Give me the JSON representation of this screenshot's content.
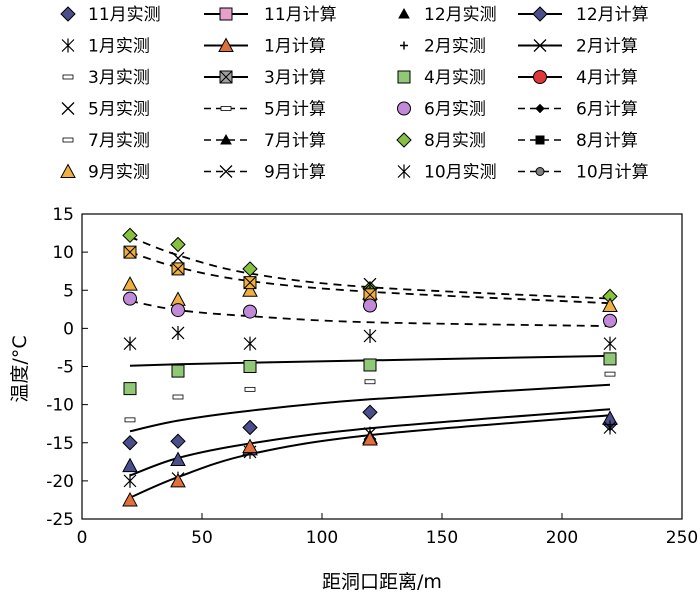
{
  "chart_data": {
    "type": "line",
    "title": "",
    "xlabel": "距洞口距离/m",
    "ylabel": "温度/°C",
    "xlim": [
      0,
      250
    ],
    "ylim": [
      -25,
      15
    ],
    "xticks": [
      0,
      50,
      100,
      150,
      200,
      250
    ],
    "yticks": [
      -25,
      -20,
      -15,
      -10,
      -5,
      0,
      5,
      10,
      15
    ],
    "grid": false,
    "legend_position": "top",
    "colors": {
      "pink": "#e8a0c8",
      "navy_purple": "#4b4e8a",
      "orange_red": "#e0703a",
      "green": "#90c878",
      "red": "#e03838",
      "lavender": "#c08ad8",
      "bright_green": "#88c040",
      "gold": "#f0b040"
    },
    "legend": [
      {
        "label": "11月实测",
        "marker": "diamond",
        "fill": "#4b4e8a",
        "line": "none"
      },
      {
        "label": "11月计算",
        "marker": "square",
        "fill": "#e8a0c8",
        "line": "solid"
      },
      {
        "label": "12月实测",
        "marker": "triangle-small",
        "fill": "#000000",
        "line": "none"
      },
      {
        "label": "12月计算",
        "marker": "diamond",
        "fill": "#4b4e8a",
        "line": "solid"
      },
      {
        "label": "1月实测",
        "marker": "asterisk",
        "fill": "#000000",
        "line": "none"
      },
      {
        "label": "1月计算",
        "marker": "triangle",
        "fill": "#e0703a",
        "line": "solid"
      },
      {
        "label": "2月实测",
        "marker": "plus",
        "fill": "#000000",
        "line": "none"
      },
      {
        "label": "2月计算",
        "marker": "x",
        "fill": "#000000",
        "line": "solid"
      },
      {
        "label": "3月实测",
        "marker": "dash",
        "fill": "#ffffff",
        "line": "none"
      },
      {
        "label": "3月计算",
        "marker": "square-x",
        "fill": "#a0a0a0",
        "line": "solid"
      },
      {
        "label": "4月实测",
        "marker": "square",
        "fill": "#90c878",
        "line": "none"
      },
      {
        "label": "4月计算",
        "marker": "circle",
        "fill": "#e03838",
        "line": "solid"
      },
      {
        "label": "5月实测",
        "marker": "x",
        "fill": "#000000",
        "line": "none"
      },
      {
        "label": "5月计算",
        "marker": "dash",
        "fill": "#ffffff",
        "line": "dashed"
      },
      {
        "label": "6月实测",
        "marker": "circle",
        "fill": "#c08ad8",
        "line": "none"
      },
      {
        "label": "6月计算",
        "marker": "diamond-small",
        "fill": "#000000",
        "line": "dashed"
      },
      {
        "label": "7月实测",
        "marker": "dash",
        "fill": "#ffffff",
        "line": "none"
      },
      {
        "label": "7月计算",
        "marker": "triangle-small",
        "fill": "#000000",
        "line": "dashed"
      },
      {
        "label": "8月实测",
        "marker": "diamond",
        "fill": "#88c040",
        "line": "none"
      },
      {
        "label": "8月计算",
        "marker": "square-small",
        "fill": "#000000",
        "line": "dashed"
      },
      {
        "label": "9月实测",
        "marker": "triangle",
        "fill": "#f0b040",
        "line": "none"
      },
      {
        "label": "9月计算",
        "marker": "x",
        "fill": "#000000",
        "line": "dashed"
      },
      {
        "label": "10月实测",
        "marker": "asterisk",
        "fill": "#000000",
        "line": "none"
      },
      {
        "label": "10月计算",
        "marker": "circle-small",
        "fill": "#808080",
        "line": "dashed"
      }
    ],
    "series": [
      {
        "name": "4月计算",
        "style": "solid",
        "x": [
          20,
          40,
          70,
          120,
          220
        ],
        "y": [
          -4.9,
          -4.7,
          -4.5,
          -4.2,
          -3.6
        ]
      },
      {
        "name": "3月计算",
        "style": "solid",
        "x": [
          20,
          40,
          70,
          120,
          220
        ],
        "y": [
          -13.5,
          -12.1,
          -10.8,
          -9.3,
          -7.4
        ]
      },
      {
        "name": "2月计算",
        "style": "solid",
        "x": [
          20,
          40,
          70,
          120,
          220
        ],
        "y": [
          -19.3,
          -17.0,
          -15.1,
          -13.1,
          -10.6
        ]
      },
      {
        "name": "1月计算",
        "style": "solid",
        "x": [
          20,
          40,
          70,
          120,
          220
        ],
        "y": [
          -22.2,
          -19.5,
          -16.5,
          -14.0,
          -11.4
        ]
      },
      {
        "name": "8月计算",
        "style": "dashed",
        "x": [
          20,
          40,
          70,
          120,
          220
        ],
        "y": [
          12.0,
          9.6,
          7.2,
          5.4,
          3.9
        ]
      },
      {
        "name": "7月计算",
        "style": "dashed",
        "x": [
          20,
          40,
          70,
          120,
          220
        ],
        "y": [
          10.0,
          8.0,
          6.2,
          4.8,
          3.3
        ]
      },
      {
        "name": "6月计算",
        "style": "dashed",
        "x": [
          20,
          40,
          70,
          120,
          220
        ],
        "y": [
          3.6,
          2.4,
          1.6,
          0.8,
          0.3
        ]
      }
    ],
    "measured": [
      {
        "name": "8月实测",
        "marker": "diamond",
        "fill": "#88c040",
        "x": [
          20,
          40,
          70,
          120,
          220
        ],
        "y": [
          12.2,
          11.0,
          7.8,
          5.2,
          4.2
        ]
      },
      {
        "name": "9月实测",
        "marker": "triangle",
        "fill": "#f0b040",
        "x": [
          20,
          40,
          70,
          120,
          220
        ],
        "y": [
          5.8,
          3.8,
          5.0,
          4.6,
          3.0
        ]
      },
      {
        "name": "7月实测",
        "marker": "square-gold",
        "fill": "#f0b040",
        "x": [
          20,
          40,
          70,
          120
        ],
        "y": [
          10.0,
          7.8,
          6.0,
          4.4
        ]
      },
      {
        "name": "5月实测",
        "marker": "x",
        "fill": "#000000",
        "x": [
          40,
          120
        ],
        "y": [
          9.2,
          5.8
        ]
      },
      {
        "name": "6月实测",
        "marker": "circle",
        "fill": "#c08ad8",
        "x": [
          20,
          40,
          70,
          120,
          220
        ],
        "y": [
          3.9,
          2.4,
          2.2,
          3.0,
          1.0
        ]
      },
      {
        "name": "10月实测",
        "marker": "asterisk",
        "fill": "#000000",
        "x": [
          20,
          40,
          70,
          120,
          220
        ],
        "y": [
          -2.0,
          -0.6,
          -2.0,
          -1.0,
          -2.0
        ]
      },
      {
        "name": "4月实测",
        "marker": "square",
        "fill": "#90c878",
        "x": [
          20,
          40,
          70,
          120,
          220
        ],
        "y": [
          -7.9,
          -5.6,
          -5.0,
          -4.8,
          -4.0
        ]
      },
      {
        "name": "3月实测",
        "marker": "dash",
        "fill": "#ffffff",
        "x": [
          20,
          40,
          70,
          120,
          220
        ],
        "y": [
          -12.0,
          -9.0,
          -8.0,
          -7.0,
          -6.0
        ]
      },
      {
        "name": "11月实测",
        "marker": "diamond",
        "fill": "#4b4e8a",
        "x": [
          20,
          40,
          70,
          120,
          220
        ],
        "y": [
          -15.0,
          -14.8,
          -13.0,
          -11.0,
          -12.5
        ]
      },
      {
        "name": "12月实测",
        "marker": "triangle",
        "fill": "#4b4e8a",
        "x": [
          20,
          40,
          70,
          120,
          220
        ],
        "y": [
          -18.0,
          -17.2,
          -15.8,
          -14.3,
          -11.8
        ]
      },
      {
        "name": "1月实测",
        "marker": "asterisk",
        "fill": "#000000",
        "x": [
          20,
          40,
          70,
          120,
          220
        ],
        "y": [
          -20.0,
          -19.7,
          -16.2,
          -13.8,
          -13.0
        ]
      },
      {
        "name": "2月实测",
        "marker": "triangle",
        "fill": "#e0703a",
        "x": [
          20,
          40,
          70,
          120
        ],
        "y": [
          -22.5,
          -20.0,
          -15.5,
          -14.5
        ]
      }
    ]
  }
}
